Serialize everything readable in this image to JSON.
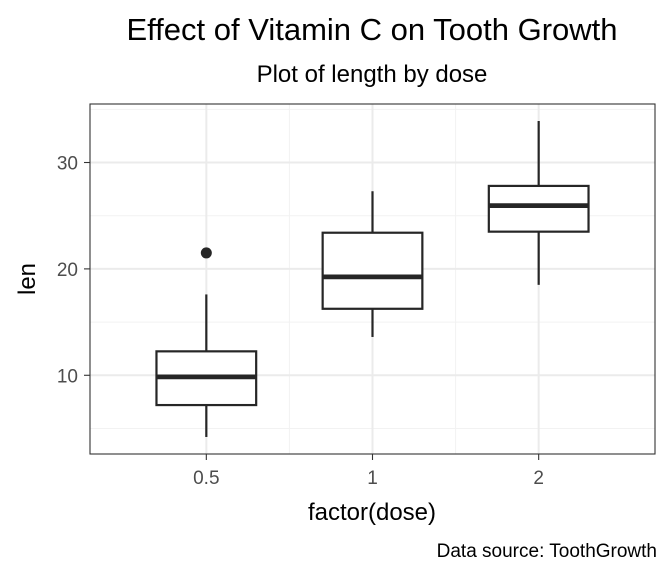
{
  "chart_data": {
    "type": "box",
    "title": "Effect of Vitamin C on Tooth Growth",
    "subtitle": "Plot of length by dose",
    "xlabel": "factor(dose)",
    "ylabel": "len",
    "caption": "Data source: ToothGrowth",
    "categories": [
      "0.5",
      "1",
      "2"
    ],
    "boxes": [
      {
        "category": "0.5",
        "whisker_low": 4.2,
        "q1": 7.2,
        "median": 9.85,
        "q3": 12.25,
        "whisker_high": 17.6,
        "outliers": [
          21.5
        ]
      },
      {
        "category": "1",
        "whisker_low": 13.6,
        "q1": 16.25,
        "median": 19.25,
        "q3": 23.4,
        "whisker_high": 27.3,
        "outliers": []
      },
      {
        "category": "2",
        "whisker_low": 18.5,
        "q1": 23.5,
        "median": 25.95,
        "q3": 27.8,
        "whisker_high": 33.9,
        "outliers": []
      }
    ],
    "ylim": [
      2.6,
      35.5
    ],
    "yticks": [
      10,
      20,
      30
    ],
    "grid": true,
    "theme": {
      "box_color": "#262626",
      "grid_major": "#ebebeb",
      "grid_minor": "#f2f2f2",
      "panel_border": "#333333"
    }
  }
}
